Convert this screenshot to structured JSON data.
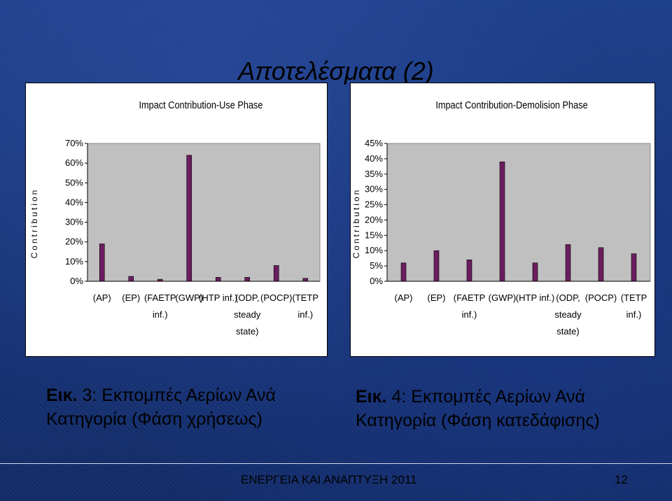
{
  "slide": {
    "title": "Αποτελέσματα (2)",
    "footer_text": "ΕΝΕΡΓΕΙΑ ΚΑΙ ΑΝΑΠΤΥΞΗ 2011",
    "page_number": "12"
  },
  "captions": [
    {
      "prefix": "Εικ.",
      "number": "3",
      "text_line1": ": Εκπομπές  Αερίων Ανά",
      "text_line2": "Κατηγορία  (Φάση χρήσεως)"
    },
    {
      "prefix": "Εικ.",
      "number": "4",
      "text_line1": ": Εκπομπές  Αερίων Ανά",
      "text_line2": "Κατηγορία  (Φάση κατεδάφισης)"
    }
  ],
  "chart_data": [
    {
      "type": "bar",
      "title": "Impact Contribution-Use Phase",
      "ylabel": "Contribution",
      "xlabel": "",
      "categories": [
        [
          "(AP)"
        ],
        [
          "(EP)"
        ],
        [
          "(FAETP",
          "inf.)"
        ],
        [
          "(GWP)"
        ],
        [
          "(HTP inf.)"
        ],
        [
          "(ODP,",
          "steady",
          "state)"
        ],
        [
          "(POCP)"
        ],
        [
          "(TETP",
          "inf.)"
        ]
      ],
      "values": [
        19,
        2.5,
        1,
        64,
        2,
        2,
        8,
        1.5
      ],
      "ylim": [
        0,
        70
      ],
      "yticks": [
        "0%",
        "10%",
        "20%",
        "30%",
        "40%",
        "50%",
        "60%",
        "70%"
      ],
      "grid": false,
      "bar_color": "#6b1d5e"
    },
    {
      "type": "bar",
      "title": "Impact Contribution-Demolision Phase",
      "ylabel": "Contribution",
      "xlabel": "",
      "categories": [
        [
          "(AP)"
        ],
        [
          "(EP)"
        ],
        [
          "(FAETP",
          "inf.)"
        ],
        [
          "(GWP)"
        ],
        [
          "(HTP inf.)"
        ],
        [
          "(ODP,",
          "steady",
          "state)"
        ],
        [
          "(POCP)"
        ],
        [
          "(TETP",
          "inf.)"
        ]
      ],
      "values": [
        6,
        10,
        7,
        39,
        6,
        12,
        11,
        9
      ],
      "ylim": [
        0,
        45
      ],
      "yticks": [
        "0%",
        "5%",
        "10%",
        "15%",
        "20%",
        "25%",
        "30%",
        "35%",
        "40%",
        "45%"
      ],
      "grid": false,
      "bar_color": "#6b1d5e"
    }
  ]
}
